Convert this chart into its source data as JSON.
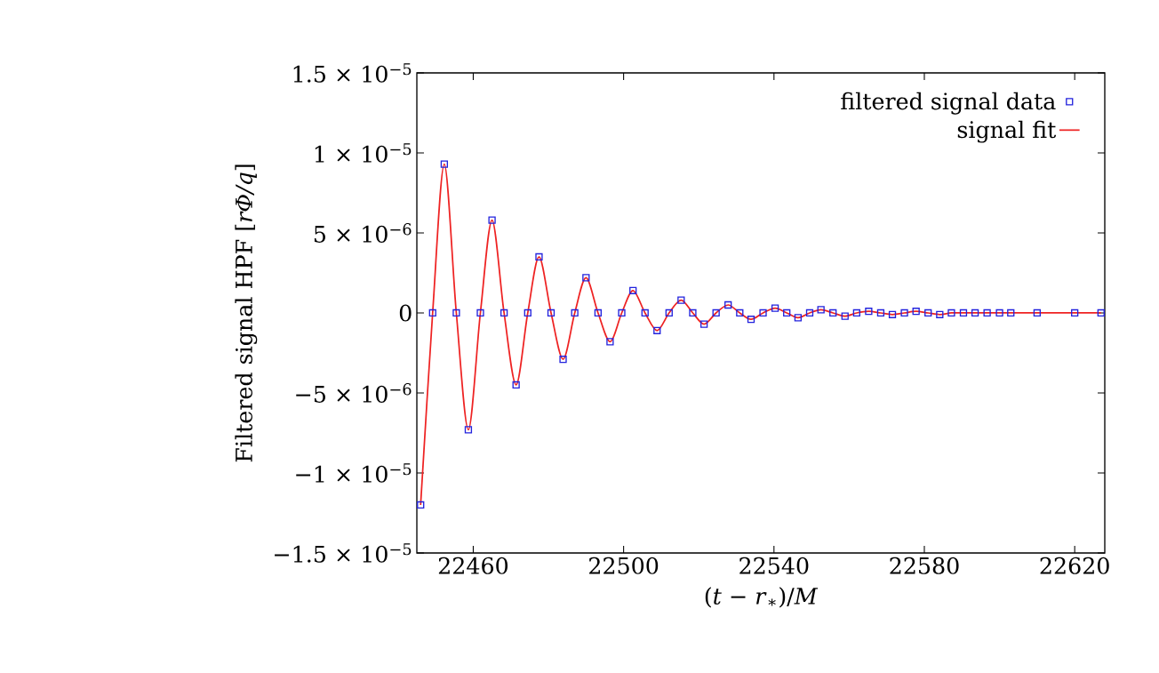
{
  "chart_data": {
    "type": "scatter",
    "xlabel": "(*t* − *r*$_{∗}$)/*M*",
    "ylabel": "Filtered signal HPF [*rΦ/q*]",
    "xlim": [
      22445,
      22628
    ],
    "xticks": [
      22460,
      22500,
      22540,
      22580,
      22620
    ],
    "ylim": [
      -1.5e-05,
      1.5e-05
    ],
    "yticks": [
      {
        "value": -1.5e-05,
        "label": "−1.5 × 10$^{−5}$"
      },
      {
        "value": -1e-05,
        "label": "−1 × 10$^{−5}$"
      },
      {
        "value": -5e-06,
        "label": "−5 × 10$^{−6}$"
      },
      {
        "value": 0,
        "label": "0"
      },
      {
        "value": 5e-06,
        "label": "5 × 10$^{−6}$"
      },
      {
        "value": 1e-05,
        "label": "1 × 10$^{−5}$"
      },
      {
        "value": 1.5e-05,
        "label": "1.5 × 10$^{−5}$"
      }
    ],
    "legend": "top right",
    "grid": false,
    "series": [
      {
        "name": "filtered signal data",
        "type": "scatter",
        "marker": "square",
        "color": "#2222dd",
        "x": [
          22446,
          22449.2,
          22452.3,
          22455.5,
          22458.7,
          22461.9,
          22465.0,
          22468.2,
          22471.4,
          22474.5,
          22477.5,
          22480.7,
          22483.9,
          22487.0,
          22490.0,
          22493.2,
          22496.4,
          22499.5,
          22502.5,
          22505.7,
          22508.9,
          22512.1,
          22515.3,
          22518.4,
          22521.4,
          22524.6,
          22527.8,
          22530.9,
          22533.9,
          22537.1,
          22540.3,
          22543.4,
          22546.4,
          22549.5,
          22552.5,
          22555.7,
          22558.9,
          22562.0,
          22565.2,
          22568.4,
          22571.5,
          22574.7,
          22577.8,
          22581.0,
          22584.1,
          22587.2,
          22590.4,
          22593.5,
          22596.7,
          22600.0,
          22603.0,
          22610.0,
          22620.0,
          22627.0
        ],
        "values": [
          -1.2e-05,
          0,
          9.3e-06,
          0,
          -7.3e-06,
          0,
          5.8e-06,
          0,
          -4.5e-06,
          0,
          3.5e-06,
          0,
          -2.9e-06,
          0,
          2.2e-06,
          0,
          -1.8e-06,
          0,
          1.4e-06,
          0,
          -1.1e-06,
          0,
          8e-07,
          0,
          -7e-07,
          0,
          5e-07,
          0,
          -4e-07,
          0,
          3e-07,
          0,
          -3e-07,
          0,
          2e-07,
          0,
          -2e-07,
          0,
          1e-07,
          0,
          -1e-07,
          0,
          1e-07,
          0,
          -1e-07,
          0,
          0,
          0,
          0,
          0,
          0,
          0,
          0,
          0
        ]
      },
      {
        "name": "signal fit",
        "type": "line",
        "marker": "none",
        "line_style": "solid",
        "color": "#ee2222",
        "x": [
          22446,
          22449.2,
          22452.3,
          22455.5,
          22458.7,
          22461.9,
          22465.0,
          22468.2,
          22471.4,
          22474.5,
          22477.5,
          22480.7,
          22483.9,
          22487.0,
          22490.0,
          22493.2,
          22496.4,
          22499.5,
          22502.5,
          22505.7,
          22508.9,
          22512.1,
          22515.3,
          22518.4,
          22521.4,
          22524.6,
          22527.8,
          22530.9,
          22533.9,
          22537.1,
          22540.3,
          22543.4,
          22546.4,
          22549.5,
          22552.5,
          22555.7,
          22558.9,
          22562.0,
          22565.2,
          22568.4,
          22571.5,
          22574.7,
          22577.8,
          22581.0,
          22584.1,
          22587.2,
          22590.4,
          22593.5,
          22596.7,
          22600.0,
          22603.0,
          22610.0,
          22620.0,
          22627.0
        ],
        "values": [
          -1.2e-05,
          0,
          9.3e-06,
          0,
          -7.3e-06,
          0,
          5.8e-06,
          0,
          -4.5e-06,
          0,
          3.5e-06,
          0,
          -2.9e-06,
          0,
          2.2e-06,
          0,
          -1.8e-06,
          0,
          1.4e-06,
          0,
          -1.1e-06,
          0,
          8e-07,
          0,
          -7e-07,
          0,
          5e-07,
          0,
          -4e-07,
          0,
          3e-07,
          0,
          -3e-07,
          0,
          2e-07,
          0,
          -2e-07,
          0,
          1e-07,
          0,
          -1e-07,
          0,
          1e-07,
          0,
          -1e-07,
          0,
          0,
          0,
          0,
          0,
          0,
          0,
          0,
          0
        ]
      }
    ]
  }
}
